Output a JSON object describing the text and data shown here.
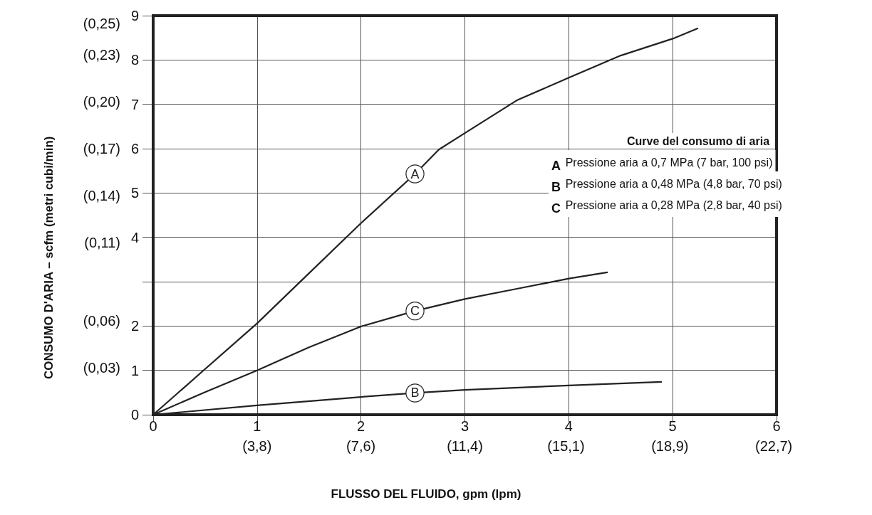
{
  "chart_data": {
    "type": "line",
    "xlabel": "FLUSSO DEL FLUIDO, gpm (lpm)",
    "y2label": "CONSUMO D'ARIA – scfm (metri cubi/min)",
    "legend_title": "Curve del consumo di aria",
    "annotations": [
      "A Pressione aria a 0,7 MPa (7 bar, 100 psi)",
      "B Pressione aria a 0,48 MPa (4,8 bar, 70 psi)",
      "C Pressione aria a 0,28 MPa (2,8 bar, 40 psi)"
    ],
    "xlim": [
      0,
      6
    ],
    "xticks": [
      0,
      1,
      2,
      3,
      4,
      5,
      6
    ],
    "x2lim": [
      0,
      22.8
    ],
    "x2ticks": [
      {
        "value": 3.8,
        "label": "(3,8)"
      },
      {
        "value": 7.6,
        "label": "(7,6)"
      },
      {
        "value": 11.4,
        "label": "(11,4)"
      },
      {
        "value": 15.1,
        "label": "(15,1)"
      },
      {
        "value": 18.9,
        "label": "(18,9)"
      },
      {
        "value": 22.7,
        "label": "(22,7)"
      }
    ],
    "ylim": [
      0,
      9
    ],
    "yticks": [
      0,
      1,
      2,
      {
        "value": 3,
        "label": null
      },
      4,
      5,
      6,
      7,
      8,
      9
    ],
    "y2lim": [
      0,
      0.255
    ],
    "y2ticks": [
      {
        "value": 0.03,
        "label": "(0,03)"
      },
      {
        "value": 0.06,
        "label": "(0,06)"
      },
      {
        "value": 0.11,
        "label": "(0,11)"
      },
      {
        "value": 0.14,
        "label": "(0,14)"
      },
      {
        "value": 0.17,
        "label": "(0,17)"
      },
      {
        "value": 0.2,
        "label": "(0,20)"
      },
      {
        "value": 0.23,
        "label": "(0,23)"
      },
      {
        "value": 0.25,
        "label": "(0,25)"
      }
    ],
    "grid": true,
    "marker": "none",
    "line_style": "solid",
    "series": [
      {
        "color": "#222222",
        "x": [
          0,
          0.5,
          1,
          1.5,
          2,
          2.52,
          2.75,
          3,
          3.5,
          4,
          4.5,
          5,
          5.24
        ],
        "values": [
          0,
          1.03,
          2.06,
          3.19,
          4.32,
          5.43,
          5.98,
          6.35,
          7.09,
          7.6,
          8.1,
          8.48,
          8.71
        ],
        "value_labels": [
          null,
          null,
          null,
          null,
          null,
          "A",
          null,
          null,
          null,
          null,
          null,
          null,
          null
        ]
      },
      {
        "color": "#222222",
        "x": [
          0,
          1,
          2,
          2.52,
          3,
          4,
          4.89
        ],
        "values": [
          0,
          0.21,
          0.4,
          0.49,
          0.56,
          0.66,
          0.74
        ],
        "value_labels": [
          null,
          null,
          null,
          "B",
          null,
          null,
          null
        ]
      },
      {
        "color": "#222222",
        "x": [
          0,
          0.5,
          1,
          1.5,
          2,
          2.52,
          3,
          3.5,
          4,
          4.37
        ],
        "values": [
          0,
          0.51,
          1.0,
          1.52,
          1.99,
          2.34,
          2.61,
          2.84,
          3.07,
          3.21
        ],
        "value_labels": [
          null,
          null,
          null,
          null,
          null,
          "C",
          null,
          null,
          null,
          null
        ]
      }
    ]
  }
}
